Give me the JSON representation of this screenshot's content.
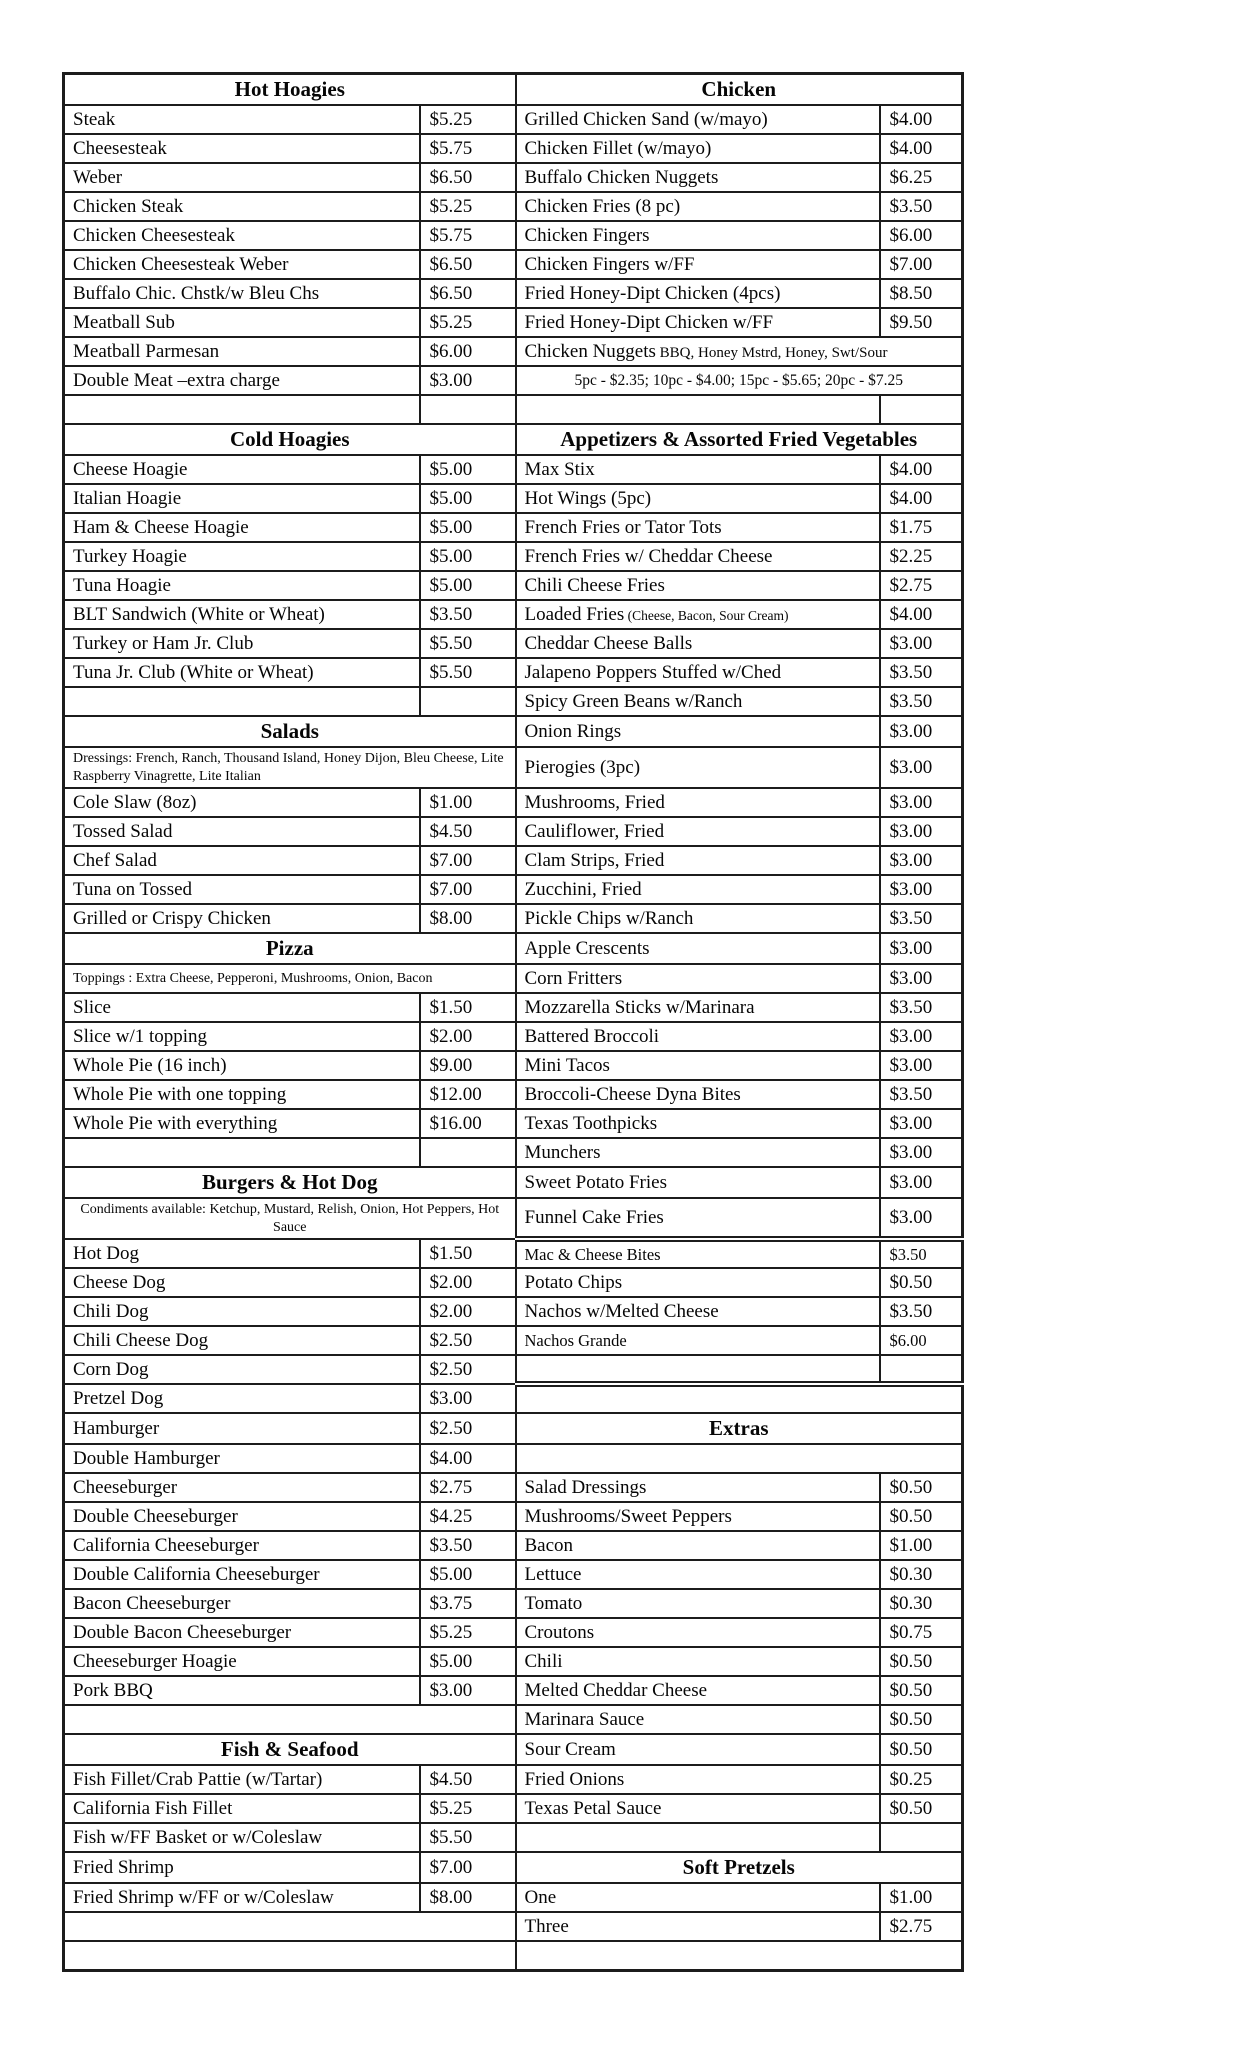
{
  "colors": {
    "border": "#1c1c1c",
    "ink": "#060606",
    "paper": "#ffffff"
  },
  "menu": {
    "left": {
      "sections": [
        {
          "title": "Hot Hoagies",
          "items": [
            {
              "name": "Steak",
              "price": "$5.25"
            },
            {
              "name": "Cheesesteak",
              "price": "$5.75"
            },
            {
              "name": "Weber",
              "price": "$6.50"
            },
            {
              "name": "Chicken Steak",
              "price": "$5.25"
            },
            {
              "name": "Chicken Cheesesteak",
              "price": "$5.75"
            },
            {
              "name": "Chicken Cheesesteak Weber",
              "price": "$6.50"
            },
            {
              "name": "Buffalo Chic. Chstk/w Bleu Chs",
              "price": "$6.50"
            },
            {
              "name": "Meatball Sub",
              "price": "$5.25"
            },
            {
              "name": "Meatball Parmesan",
              "price": "$6.00"
            },
            {
              "name": "Double Meat –extra charge",
              "price": "$3.00"
            },
            {
              "type": "blank"
            }
          ]
        },
        {
          "title": "Cold Hoagies",
          "items": [
            {
              "name": "Cheese Hoagie",
              "price": "$5.00"
            },
            {
              "name": "Italian Hoagie",
              "price": "$5.00"
            },
            {
              "name": "Ham & Cheese Hoagie",
              "price": "$5.00"
            },
            {
              "name": "Turkey Hoagie",
              "price": "$5.00"
            },
            {
              "name": "Tuna Hoagie",
              "price": "$5.00"
            },
            {
              "name": "BLT Sandwich (White or Wheat)",
              "price": "$3.50"
            },
            {
              "name": "Turkey or Ham Jr. Club",
              "price": "$5.50"
            },
            {
              "name": "Tuna Jr. Club (White or Wheat)",
              "price": "$5.50"
            },
            {
              "type": "blank"
            }
          ]
        },
        {
          "title": "Salads",
          "note": {
            "text": "Dressings: French, Ranch, Thousand Island, Honey Dijon, Bleu Cheese, Lite Raspberry Vinagrette,  Lite Italian",
            "align": "left"
          },
          "items": [
            {
              "name": "Cole Slaw (8oz)",
              "price": "$1.00"
            },
            {
              "name": "Tossed Salad",
              "price": "$4.50"
            },
            {
              "name": "Chef Salad",
              "price": "$7.00"
            },
            {
              "name": "Tuna on Tossed",
              "price": "$7.00"
            },
            {
              "name": "Grilled or Crispy Chicken",
              "price": "$8.00"
            }
          ]
        },
        {
          "title": "Pizza",
          "note": {
            "text": "Toppings : Extra Cheese, Pepperoni, Mushrooms, Onion, Bacon",
            "align": "left"
          },
          "items": [
            {
              "name": "Slice",
              "price": "$1.50"
            },
            {
              "name": "Slice w/1 topping",
              "price": "$2.00"
            },
            {
              "name": "Whole Pie (16 inch)",
              "price": "$9.00"
            },
            {
              "name": "Whole Pie with one topping",
              "price": "$12.00"
            },
            {
              "name": "Whole Pie with everything",
              "price": "$16.00"
            },
            {
              "type": "blank"
            }
          ]
        },
        {
          "title": "Burgers & Hot Dog",
          "note": {
            "text": "Condiments available:  Ketchup, Mustard, Relish, Onion, Hot Peppers, Hot Sauce",
            "align": "center"
          },
          "items": [
            {
              "name": "Hot Dog",
              "price": "$1.50"
            },
            {
              "name": "Cheese Dog",
              "price": "$2.00"
            },
            {
              "name": "Chili Dog",
              "price": "$2.00"
            },
            {
              "name": "Chili Cheese Dog",
              "price": "$2.50"
            },
            {
              "name": "Corn Dog",
              "price": "$2.50"
            },
            {
              "name": "Pretzel Dog",
              "price": "$3.00"
            },
            {
              "name": "Hamburger",
              "price": "$2.50"
            },
            {
              "name": "Double Hamburger",
              "price": "$4.00"
            },
            {
              "name": "Cheeseburger",
              "price": "$2.75"
            },
            {
              "name": "Double Cheeseburger",
              "price": "$4.25"
            },
            {
              "name": "California Cheeseburger",
              "price": "$3.50"
            },
            {
              "name": "Double California Cheeseburger",
              "price": "$5.00"
            },
            {
              "name": "Bacon Cheeseburger",
              "price": "$3.75"
            },
            {
              "name": "Double Bacon Cheeseburger",
              "price": "$5.25"
            },
            {
              "name": "Cheeseburger Hoagie",
              "price": "$5.00"
            },
            {
              "name": "Pork BBQ",
              "price": "$3.00"
            },
            {
              "type": "blank_span"
            }
          ]
        },
        {
          "title": "Fish & Seafood",
          "items": [
            {
              "name": "Fish Fillet/Crab Pattie (w/Tartar)",
              "price": "$4.50"
            },
            {
              "name": "California Fish Fillet",
              "price": "$5.25"
            },
            {
              "name": "Fish w/FF Basket or w/Coleslaw",
              "price": "$5.50"
            },
            {
              "name": "Fried Shrimp",
              "price": "$7.00"
            },
            {
              "name": "Fried Shrimp w/FF or w/Coleslaw",
              "price": "$8.00"
            },
            {
              "type": "blank_span"
            },
            {
              "type": "blank_span"
            }
          ]
        }
      ]
    },
    "right": {
      "sections": [
        {
          "title": "Chicken",
          "items": [
            {
              "name": "Grilled Chicken Sand (w/mayo)",
              "price": "$4.00"
            },
            {
              "name": "Chicken Fillet (w/mayo)",
              "price": "$4.00"
            },
            {
              "name": "Buffalo Chicken Nuggets",
              "price": "$6.25"
            },
            {
              "name": "Chicken Fries (8 pc)",
              "price": "$3.50"
            },
            {
              "name": "Chicken Fingers",
              "price": "$6.00"
            },
            {
              "name": "Chicken Fingers w/FF",
              "price": "$7.00"
            },
            {
              "name": "Fried Honey-Dipt Chicken (4pcs)",
              "price": "$8.50"
            },
            {
              "name": "Fried Honey-Dipt Chicken w/FF",
              "price": "$9.50"
            },
            {
              "type": "span",
              "name": "Chicken Nuggets",
              "suffix": "BBQ, Honey Mstrd, Honey, Swt/Sour"
            },
            {
              "type": "span_small",
              "text": "5pc - $2.35; 10pc - $4.00; 15pc - $5.65; 20pc - $7.25"
            },
            {
              "type": "blank"
            }
          ]
        },
        {
          "title": "Appetizers & Assorted Fried Vegetables",
          "items": [
            {
              "name": "Max Stix",
              "price": "$4.00"
            },
            {
              "name": "Hot Wings (5pc)",
              "price": "$4.00"
            },
            {
              "name": "French Fries or Tator Tots",
              "price": "$1.75"
            },
            {
              "name": "French Fries w/ Cheddar Cheese",
              "price": "$2.25"
            },
            {
              "name": "Chili Cheese Fries",
              "price": "$2.75"
            },
            {
              "name": "Loaded Fries",
              "suffix": "(Cheese, Bacon, Sour Cream)",
              "price": "$4.00"
            },
            {
              "name": "Cheddar Cheese Balls",
              "price": "$3.00"
            },
            {
              "name": "Jalapeno Poppers Stuffed w/Ched",
              "price": "$3.50"
            },
            {
              "name": "Spicy Green Beans w/Ranch",
              "price": "$3.50"
            },
            {
              "name": "Onion Rings",
              "price": "$3.00"
            },
            {
              "name": "Pierogies (3pc)",
              "price": "$3.00"
            },
            {
              "name": "Mushrooms, Fried",
              "price": "$3.00"
            },
            {
              "name": "Cauliflower, Fried",
              "price": "$3.00"
            },
            {
              "name": "Clam Strips, Fried",
              "price": "$3.00"
            },
            {
              "name": "Zucchini, Fried",
              "price": "$3.00"
            },
            {
              "name": "Pickle Chips w/Ranch",
              "price": "$3.50"
            },
            {
              "name": "Apple Crescents",
              "price": "$3.00"
            },
            {
              "name": "Corn Fritters",
              "price": "$3.00"
            },
            {
              "name": "Mozzarella Sticks w/Marinara",
              "price": "$3.50"
            },
            {
              "name": "Battered Broccoli",
              "price": "$3.00"
            },
            {
              "name": "Mini Tacos",
              "price": "$3.00"
            },
            {
              "name": "Broccoli-Cheese Dyna Bites",
              "price": "$3.50"
            },
            {
              "name": "Texas Toothpicks",
              "price": "$3.00"
            },
            {
              "name": "Munchers",
              "price": "$3.00"
            },
            {
              "name": "Sweet Potato Fries",
              "price": "$3.00"
            },
            {
              "name": "Funnel Cake Fries",
              "price": "$3.00"
            },
            {
              "name": "Mac & Cheese Bites",
              "price": "$3.50",
              "small": true,
              "gap_before": true
            },
            {
              "name": "Potato Chips",
              "price": "$0.50"
            },
            {
              "name": "Nachos w/Melted Cheese",
              "price": "$3.50"
            },
            {
              "name": "Nachos Grande",
              "price": "$6.00",
              "small": true
            },
            {
              "type": "blank"
            },
            {
              "type": "blank_span",
              "gap_before": true
            }
          ]
        },
        {
          "title": "Extras",
          "items": [
            {
              "type": "blank_span"
            },
            {
              "name": "Salad Dressings",
              "price": "$0.50"
            },
            {
              "name": "Mushrooms/Sweet Peppers",
              "price": "$0.50"
            },
            {
              "name": "Bacon",
              "price": "$1.00"
            },
            {
              "name": "Lettuce",
              "price": "$0.30"
            },
            {
              "name": "Tomato",
              "price": "$0.30"
            },
            {
              "name": "Croutons",
              "price": "$0.75"
            },
            {
              "name": "Chili",
              "price": "$0.50"
            },
            {
              "name": "Melted Cheddar Cheese",
              "price": "$0.50"
            },
            {
              "name": "Marinara Sauce",
              "price": "$0.50"
            },
            {
              "name": "Sour Cream",
              "price": "$0.50"
            },
            {
              "name": "Fried Onions",
              "price": "$0.25"
            },
            {
              "name": "Texas Petal Sauce",
              "price": "$0.50"
            },
            {
              "type": "blank"
            }
          ]
        },
        {
          "title": "Soft Pretzels",
          "items": [
            {
              "name": "One",
              "price": "$1.00"
            },
            {
              "name": "Three",
              "price": "$2.75"
            },
            {
              "type": "blank_span"
            }
          ]
        }
      ]
    }
  }
}
